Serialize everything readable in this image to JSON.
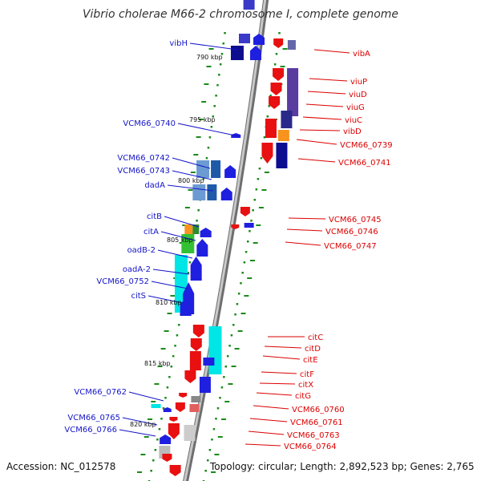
{
  "title": "Vibrio cholerae M66-2 chromosome I, complete genome",
  "footer": {
    "accession": "Accession: NC_012578",
    "summary": "Topology: circular; Length: 2,892,523 bp; Genes: 2,765"
  },
  "colors": {
    "left_label": "#1414c8",
    "right_label": "#dc0000",
    "backbone": "#999999",
    "tick": "#1a8a1a"
  },
  "kbp_marks": [
    "790 kbp",
    "795 kbp",
    "800 kbp",
    "805 kbp",
    "810 kbp",
    "815 kbp",
    "820 kbp"
  ],
  "left_labels": [
    "vibH",
    "VCM66_0740",
    "VCM66_0742",
    "VCM66_0743",
    "dadA",
    "citB",
    "citA",
    "oadB-2",
    "oadA-2",
    "VCM66_0752",
    "citS",
    "VCM66_0762",
    "VCM66_0765",
    "VCM66_0766"
  ],
  "right_labels": [
    "vibA",
    "viuP",
    "viuD",
    "viuG",
    "viuC",
    "vibD",
    "VCM66_0739",
    "VCM66_0741",
    "VCM66_0745",
    "VCM66_0746",
    "VCM66_0747",
    "citC",
    "citD",
    "citE",
    "citF",
    "citX",
    "citG",
    "VCM66_0760",
    "VCM66_0761",
    "VCM66_0763",
    "VCM66_0764"
  ]
}
